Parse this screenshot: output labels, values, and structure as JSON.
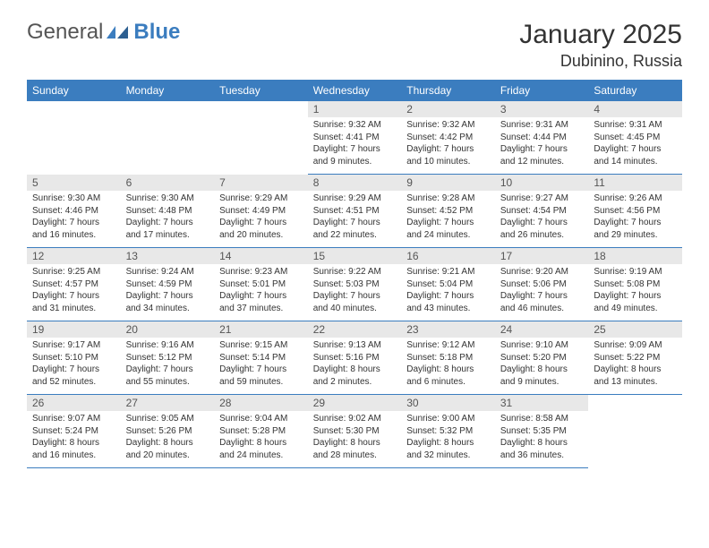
{
  "logo": {
    "general": "General",
    "blue": "Blue",
    "icon_color": "#3b7dbf"
  },
  "title": "January 2025",
  "location": "Dubinino, Russia",
  "header_bg": "#3b7dbf",
  "header_fg": "#ffffff",
  "daynum_bg": "#e8e8e8",
  "border_color": "#3b7dbf",
  "weekdays": [
    "Sunday",
    "Monday",
    "Tuesday",
    "Wednesday",
    "Thursday",
    "Friday",
    "Saturday"
  ],
  "weeks": [
    [
      null,
      null,
      null,
      {
        "n": "1",
        "sunrise": "Sunrise: 9:32 AM",
        "sunset": "Sunset: 4:41 PM",
        "daylight": "Daylight: 7 hours and 9 minutes."
      },
      {
        "n": "2",
        "sunrise": "Sunrise: 9:32 AM",
        "sunset": "Sunset: 4:42 PM",
        "daylight": "Daylight: 7 hours and 10 minutes."
      },
      {
        "n": "3",
        "sunrise": "Sunrise: 9:31 AM",
        "sunset": "Sunset: 4:44 PM",
        "daylight": "Daylight: 7 hours and 12 minutes."
      },
      {
        "n": "4",
        "sunrise": "Sunrise: 9:31 AM",
        "sunset": "Sunset: 4:45 PM",
        "daylight": "Daylight: 7 hours and 14 minutes."
      }
    ],
    [
      {
        "n": "5",
        "sunrise": "Sunrise: 9:30 AM",
        "sunset": "Sunset: 4:46 PM",
        "daylight": "Daylight: 7 hours and 16 minutes."
      },
      {
        "n": "6",
        "sunrise": "Sunrise: 9:30 AM",
        "sunset": "Sunset: 4:48 PM",
        "daylight": "Daylight: 7 hours and 17 minutes."
      },
      {
        "n": "7",
        "sunrise": "Sunrise: 9:29 AM",
        "sunset": "Sunset: 4:49 PM",
        "daylight": "Daylight: 7 hours and 20 minutes."
      },
      {
        "n": "8",
        "sunrise": "Sunrise: 9:29 AM",
        "sunset": "Sunset: 4:51 PM",
        "daylight": "Daylight: 7 hours and 22 minutes."
      },
      {
        "n": "9",
        "sunrise": "Sunrise: 9:28 AM",
        "sunset": "Sunset: 4:52 PM",
        "daylight": "Daylight: 7 hours and 24 minutes."
      },
      {
        "n": "10",
        "sunrise": "Sunrise: 9:27 AM",
        "sunset": "Sunset: 4:54 PM",
        "daylight": "Daylight: 7 hours and 26 minutes."
      },
      {
        "n": "11",
        "sunrise": "Sunrise: 9:26 AM",
        "sunset": "Sunset: 4:56 PM",
        "daylight": "Daylight: 7 hours and 29 minutes."
      }
    ],
    [
      {
        "n": "12",
        "sunrise": "Sunrise: 9:25 AM",
        "sunset": "Sunset: 4:57 PM",
        "daylight": "Daylight: 7 hours and 31 minutes."
      },
      {
        "n": "13",
        "sunrise": "Sunrise: 9:24 AM",
        "sunset": "Sunset: 4:59 PM",
        "daylight": "Daylight: 7 hours and 34 minutes."
      },
      {
        "n": "14",
        "sunrise": "Sunrise: 9:23 AM",
        "sunset": "Sunset: 5:01 PM",
        "daylight": "Daylight: 7 hours and 37 minutes."
      },
      {
        "n": "15",
        "sunrise": "Sunrise: 9:22 AM",
        "sunset": "Sunset: 5:03 PM",
        "daylight": "Daylight: 7 hours and 40 minutes."
      },
      {
        "n": "16",
        "sunrise": "Sunrise: 9:21 AM",
        "sunset": "Sunset: 5:04 PM",
        "daylight": "Daylight: 7 hours and 43 minutes."
      },
      {
        "n": "17",
        "sunrise": "Sunrise: 9:20 AM",
        "sunset": "Sunset: 5:06 PM",
        "daylight": "Daylight: 7 hours and 46 minutes."
      },
      {
        "n": "18",
        "sunrise": "Sunrise: 9:19 AM",
        "sunset": "Sunset: 5:08 PM",
        "daylight": "Daylight: 7 hours and 49 minutes."
      }
    ],
    [
      {
        "n": "19",
        "sunrise": "Sunrise: 9:17 AM",
        "sunset": "Sunset: 5:10 PM",
        "daylight": "Daylight: 7 hours and 52 minutes."
      },
      {
        "n": "20",
        "sunrise": "Sunrise: 9:16 AM",
        "sunset": "Sunset: 5:12 PM",
        "daylight": "Daylight: 7 hours and 55 minutes."
      },
      {
        "n": "21",
        "sunrise": "Sunrise: 9:15 AM",
        "sunset": "Sunset: 5:14 PM",
        "daylight": "Daylight: 7 hours and 59 minutes."
      },
      {
        "n": "22",
        "sunrise": "Sunrise: 9:13 AM",
        "sunset": "Sunset: 5:16 PM",
        "daylight": "Daylight: 8 hours and 2 minutes."
      },
      {
        "n": "23",
        "sunrise": "Sunrise: 9:12 AM",
        "sunset": "Sunset: 5:18 PM",
        "daylight": "Daylight: 8 hours and 6 minutes."
      },
      {
        "n": "24",
        "sunrise": "Sunrise: 9:10 AM",
        "sunset": "Sunset: 5:20 PM",
        "daylight": "Daylight: 8 hours and 9 minutes."
      },
      {
        "n": "25",
        "sunrise": "Sunrise: 9:09 AM",
        "sunset": "Sunset: 5:22 PM",
        "daylight": "Daylight: 8 hours and 13 minutes."
      }
    ],
    [
      {
        "n": "26",
        "sunrise": "Sunrise: 9:07 AM",
        "sunset": "Sunset: 5:24 PM",
        "daylight": "Daylight: 8 hours and 16 minutes."
      },
      {
        "n": "27",
        "sunrise": "Sunrise: 9:05 AM",
        "sunset": "Sunset: 5:26 PM",
        "daylight": "Daylight: 8 hours and 20 minutes."
      },
      {
        "n": "28",
        "sunrise": "Sunrise: 9:04 AM",
        "sunset": "Sunset: 5:28 PM",
        "daylight": "Daylight: 8 hours and 24 minutes."
      },
      {
        "n": "29",
        "sunrise": "Sunrise: 9:02 AM",
        "sunset": "Sunset: 5:30 PM",
        "daylight": "Daylight: 8 hours and 28 minutes."
      },
      {
        "n": "30",
        "sunrise": "Sunrise: 9:00 AM",
        "sunset": "Sunset: 5:32 PM",
        "daylight": "Daylight: 8 hours and 32 minutes."
      },
      {
        "n": "31",
        "sunrise": "Sunrise: 8:58 AM",
        "sunset": "Sunset: 5:35 PM",
        "daylight": "Daylight: 8 hours and 36 minutes."
      },
      null
    ]
  ]
}
